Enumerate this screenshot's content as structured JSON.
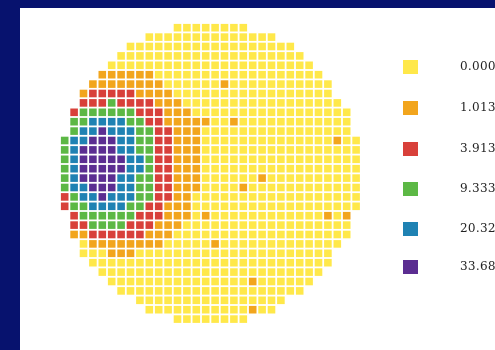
{
  "chart_data": {
    "type": "heatmap",
    "title": "",
    "legend": {
      "placement": "right",
      "entries": [
        {
          "label": "0.000",
          "color": "#ffe84a"
        },
        {
          "label": "1.013",
          "color": "#f2a51d"
        },
        {
          "label": "3.913",
          "color": "#d8403a"
        },
        {
          "label": "9.333",
          "color": "#5cb845"
        },
        {
          "label": "20.32",
          "color": "#1f82b3"
        },
        {
          "label": "33.68",
          "color": "#5b2d91"
        }
      ]
    },
    "grid": {
      "rows": 32,
      "cols": 32
    },
    "regions": [
      {
        "level": 5,
        "center": [
          -0.72,
          -0.06
        ],
        "radii": [
          0.14,
          0.22
        ]
      },
      {
        "level": 4,
        "center": [
          -0.7,
          -0.06
        ],
        "radii": [
          0.24,
          0.33
        ]
      },
      {
        "level": 3,
        "center": [
          -0.68,
          -0.05
        ],
        "radii": [
          0.33,
          0.42
        ]
      },
      {
        "level": 2,
        "center": [
          -0.64,
          -0.05
        ],
        "radii": [
          0.42,
          0.52
        ]
      },
      {
        "level": 1,
        "center": [
          -0.58,
          -0.07
        ],
        "radii": [
          0.52,
          0.62
        ]
      }
    ]
  }
}
